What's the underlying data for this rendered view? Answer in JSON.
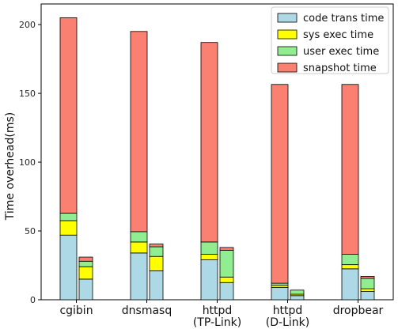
{
  "chart_data": {
    "type": "bar",
    "subtype": "stacked-grouped",
    "ylabel": "Time overhead(ms)",
    "xlabel": "",
    "ylim": [
      0,
      215
    ],
    "yticks": [
      0,
      50,
      100,
      150,
      200
    ],
    "categories": [
      "cgibin",
      "dnsmasq",
      "httpd\n(TP-Link)",
      "httpd\n(D-Link)",
      "dropbear"
    ],
    "legend": {
      "position": "top-right"
    },
    "series": [
      {
        "name": "code trans time",
        "color": "#add8e6"
      },
      {
        "name": "sys exec time",
        "color": "#ffff00"
      },
      {
        "name": "user exec time",
        "color": "#90ee90"
      },
      {
        "name": "snapshot time",
        "color": "#fa8072"
      }
    ],
    "groups": [
      {
        "category": "cgibin",
        "left": [
          47,
          10.5,
          5.5,
          142
        ],
        "right": [
          15,
          9,
          4,
          3
        ]
      },
      {
        "category": "dnsmasq",
        "left": [
          34,
          8,
          7.5,
          145.5
        ],
        "right": [
          21,
          10.5,
          7,
          2
        ]
      },
      {
        "category": "httpd\n(TP-Link)",
        "left": [
          29,
          4,
          9,
          145
        ],
        "right": [
          12.5,
          4,
          19.5,
          2
        ]
      },
      {
        "category": "httpd\n(D-Link)",
        "left": [
          9,
          1.5,
          1.5,
          144.5
        ],
        "right": [
          3,
          1,
          3,
          0
        ]
      },
      {
        "category": "dropbear",
        "left": [
          22.5,
          3,
          7.5,
          123.5
        ],
        "right": [
          6,
          2,
          7.5,
          1.5
        ]
      }
    ]
  }
}
